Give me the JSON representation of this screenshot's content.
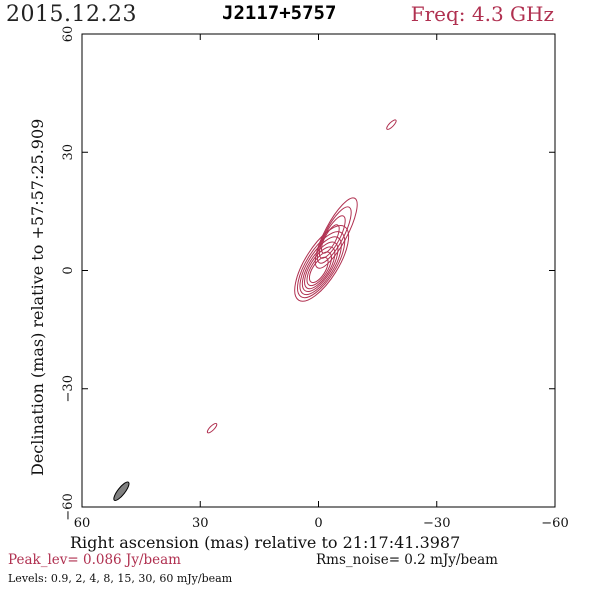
{
  "header": {
    "date": "2015.12.23",
    "source": "J2117+5757",
    "frequency": "Freq: 4.3 GHz"
  },
  "footer": {
    "peak": "Peak_lev=  0.086 Jy/beam",
    "rms": "Rms_noise=  0.2 mJy/beam",
    "levels": "Levels: 0.9,   2,   4,   8,  15,  30,  60 mJy/beam"
  },
  "colors": {
    "contour": "#b03050",
    "beam": "#808080",
    "axis": "#000000"
  },
  "chart_data": {
    "type": "contour",
    "xlabel": "Right ascension (mas) relative to 21:17:41.3987",
    "ylabel": "Declination (mas) relative to +57:57:25.909",
    "xlim": [
      60,
      -60
    ],
    "ylim": [
      -60,
      60
    ],
    "xticks": [
      60,
      30,
      0,
      -30,
      -60
    ],
    "yticks": [
      -60,
      -30,
      0,
      30,
      60
    ],
    "xtick_labels": [
      "60",
      "30",
      "0",
      "−30",
      "−60"
    ],
    "ytick_labels": [
      "−60",
      "−30",
      "0",
      "30",
      "60"
    ],
    "levels_mJy": [
      0.9,
      2,
      4,
      8,
      15,
      30,
      60
    ],
    "beam": {
      "x": 50,
      "y": -56,
      "major": 5.8,
      "minor": 1.8,
      "pa_deg": 38
    },
    "components": [
      {
        "x": 0,
        "y": 0,
        "peak_mJy": 86
      },
      {
        "x": -3,
        "y": 8,
        "peak_mJy": 10
      },
      {
        "x": -18.5,
        "y": 37,
        "peak_mJy": 1.2
      },
      {
        "x": 27,
        "y": -40,
        "peak_mJy": 1.2
      }
    ]
  }
}
